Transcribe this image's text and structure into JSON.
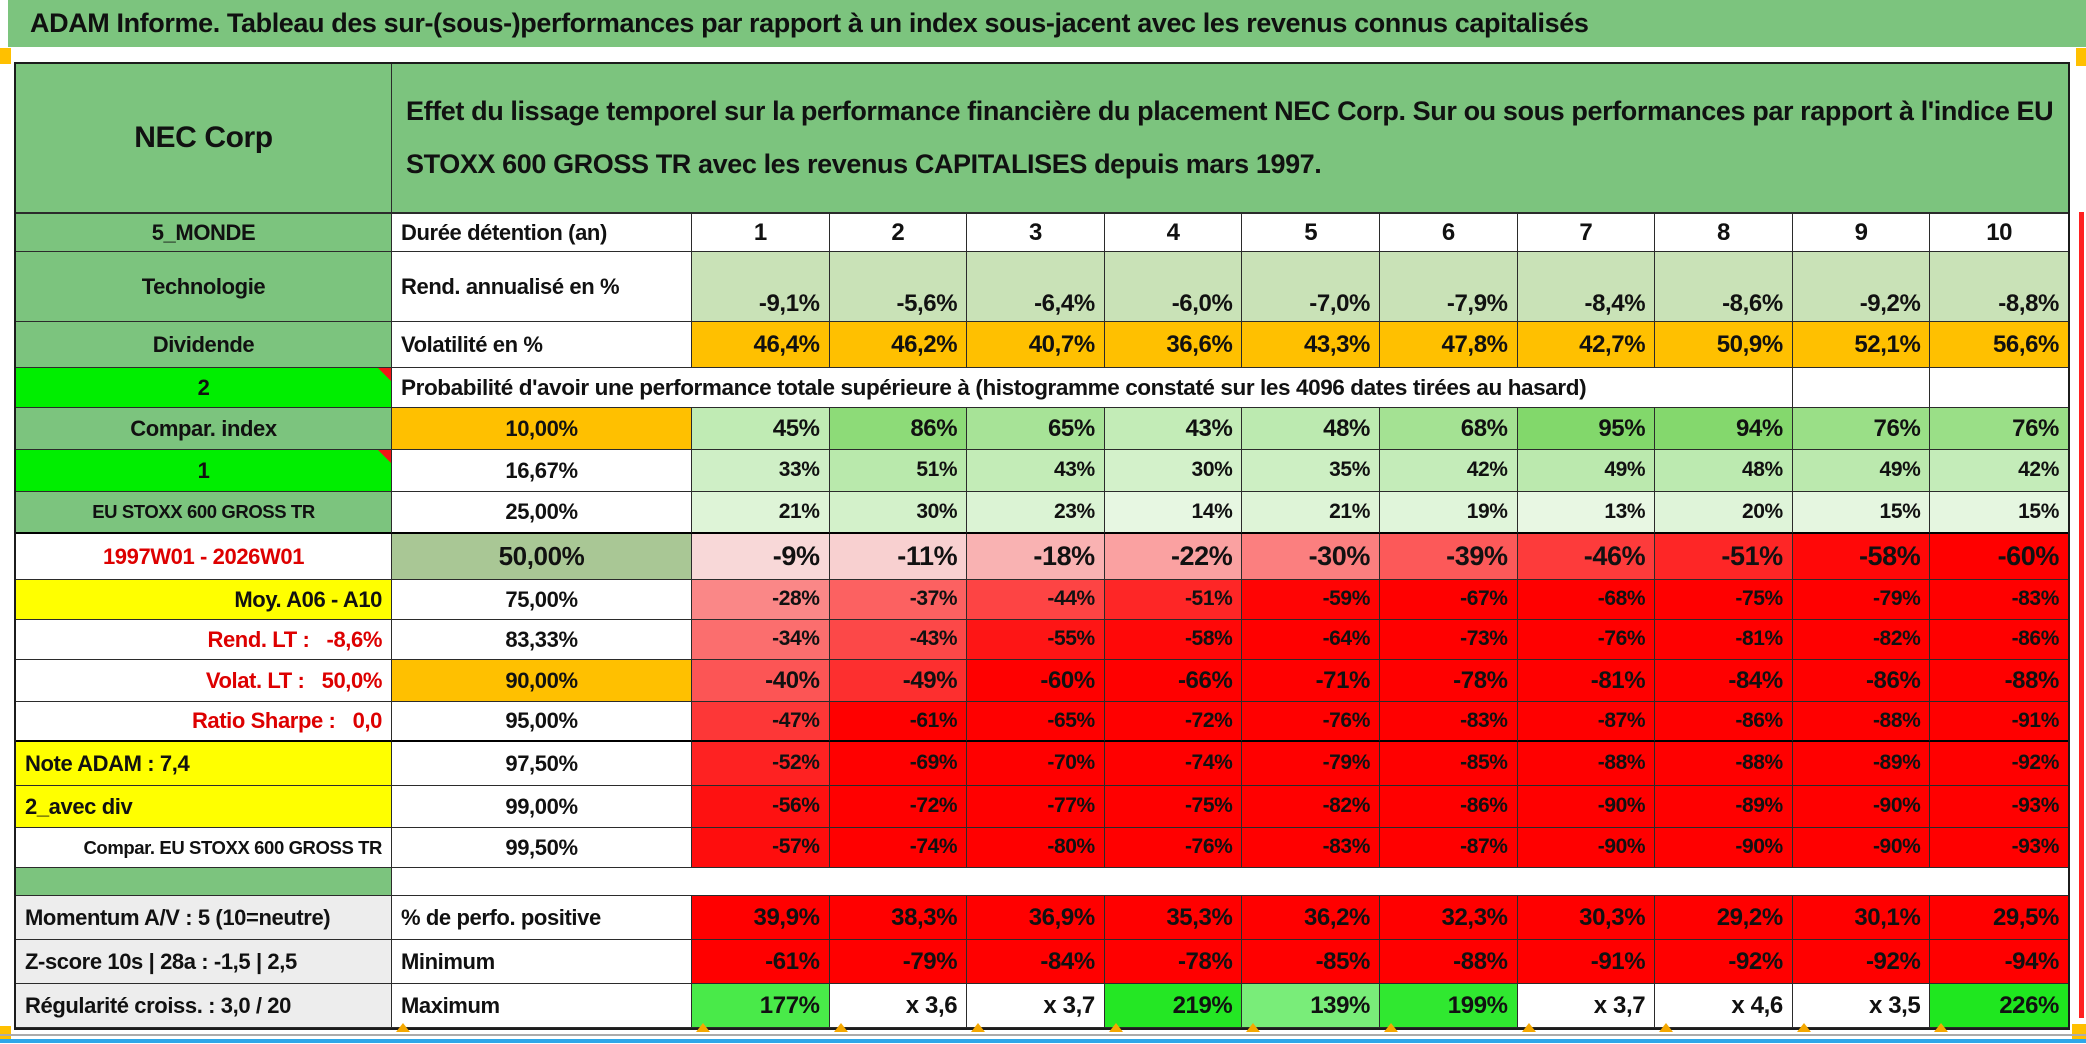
{
  "banner": {
    "title": "ADAM Informe. Tableau des sur-(sous-)performances par rapport à un index sous-jacent avec les revenus connus capitalisés"
  },
  "header": {
    "corner_label": "NEC Corp",
    "description": "Effet du lissage temporel sur la performance financière du placement NEC Corp. Sur ou sous performances par rapport à l'indice EU STOXX 600 GROSS TR avec les revenus CAPITALISES depuis mars 1997."
  },
  "colors": {
    "banner_green": "#7CC47E",
    "label_green": "#7CC47E",
    "bright_green": "#00EE00",
    "orange": "#FFC000",
    "yellow": "#FFFF00",
    "sage_green": "#A9C795",
    "gray_label": "#EDEDED",
    "red_fill": "#FF0000",
    "light_green_fill": "#C9E2B7",
    "marker_orange": "#F5A800",
    "bottom_blue_line": "#2EA7E9",
    "comment_triangle_red": "#F21616",
    "white": "#FFFFFF"
  },
  "table": {
    "rows": [
      {
        "a": {
          "t": "5_MONDE",
          "bg": "green",
          "al": "c"
        },
        "b": {
          "t": "Durée détention (an)",
          "bg": "white",
          "al": "l"
        },
        "al": "c",
        "fs": "e",
        "v": [
          "1",
          "2",
          "3",
          "4",
          "5",
          "6",
          "7",
          "8",
          "9",
          "10"
        ],
        "bgs": [
          "#FFFFFF",
          "#FFFFFF",
          "#FFFFFF",
          "#FFFFFF",
          "#FFFFFF",
          "#FFFFFF",
          "#FFFFFF",
          "#FFFFFF",
          "#FFFFFF",
          "#FFFFFF"
        ]
      },
      {
        "a": {
          "t": "Technologie",
          "bg": "green",
          "al": "c"
        },
        "b": {
          "t": "Rend. annualisé en %",
          "bg": "white",
          "al": "l"
        },
        "al": "r",
        "fs": "e",
        "bottom": true,
        "v": [
          "-9,1%",
          "-5,6%",
          "-6,4%",
          "-6,0%",
          "-7,0%",
          "-7,9%",
          "-8,4%",
          "-8,6%",
          "-9,2%",
          "-8,8%"
        ],
        "bgs": [
          "#C9E2B7",
          "#C9E2B7",
          "#C9E2B7",
          "#C9E2B7",
          "#C9E2B7",
          "#C9E2B7",
          "#C9E2B7",
          "#C9E2B7",
          "#C9E2B7",
          "#C9E2B7"
        ]
      },
      {
        "a": {
          "t": "Dividende",
          "bg": "green",
          "al": "c"
        },
        "b": {
          "t": "Volatilité en %",
          "bg": "white",
          "al": "l"
        },
        "al": "r",
        "fs": "e",
        "v": [
          "46,4%",
          "46,2%",
          "40,7%",
          "36,6%",
          "43,3%",
          "47,8%",
          "42,7%",
          "50,9%",
          "52,1%",
          "56,6%"
        ],
        "bgs": [
          "#FFC000",
          "#FFC000",
          "#FFC000",
          "#FFC000",
          "#FFC000",
          "#FFC000",
          "#FFC000",
          "#FFC000",
          "#FFC000",
          "#FFC000"
        ]
      },
      {
        "type": "span",
        "a": {
          "t": "2",
          "bg": "bright",
          "al": "c",
          "tri": true
        },
        "text": "Probabilité d'avoir une performance totale supérieure à (histogramme constaté sur les 4096 dates tirées au hasard)",
        "tail": 2
      },
      {
        "a": {
          "t": "Compar. index",
          "bg": "green",
          "al": "c"
        },
        "b": {
          "t": "10,00%",
          "bg": "orange",
          "al": "c"
        },
        "al": "r",
        "fs": "e",
        "v": [
          "45%",
          "86%",
          "65%",
          "43%",
          "48%",
          "68%",
          "95%",
          "94%",
          "76%",
          "76%"
        ],
        "bgs": [
          "#C0EBB4",
          "#8DDB78",
          "#A7E397",
          "#C3ECB7",
          "#BCEAB0",
          "#A4E293",
          "#82D86B",
          "#84D86D",
          "#9ADF87",
          "#9ADF87"
        ]
      },
      {
        "a": {
          "t": "1",
          "bg": "bright",
          "al": "c",
          "tri": true
        },
        "b": {
          "t": "16,67%",
          "bg": "white",
          "al": "c"
        },
        "al": "r",
        "fs": "n",
        "v": [
          "33%",
          "51%",
          "43%",
          "30%",
          "35%",
          "42%",
          "49%",
          "48%",
          "49%",
          "42%"
        ],
        "bgs": [
          "#CFEFC6",
          "#B9E9AC",
          "#C3ECB7",
          "#D3F1CA",
          "#CDEFC3",
          "#C4ECB9",
          "#BBE9AE",
          "#BCEAB0",
          "#BBE9AE",
          "#C4ECB9"
        ]
      },
      {
        "a": {
          "t": "EU STOXX 600 GROSS TR",
          "bg": "green",
          "al": "c",
          "small": true
        },
        "b": {
          "t": "25,00%",
          "bg": "white",
          "al": "c"
        },
        "al": "r",
        "fs": "n",
        "thick": true,
        "v": [
          "21%",
          "30%",
          "23%",
          "14%",
          "21%",
          "19%",
          "13%",
          "20%",
          "15%",
          "15%"
        ],
        "bgs": [
          "#DEF4D7",
          "#D3F1CA",
          "#DBF3D4",
          "#E7F7E2",
          "#DEF4D7",
          "#E0F5DA",
          "#E8F7E3",
          "#DFF4D9",
          "#E5F6E0",
          "#E5F6E0"
        ]
      },
      {
        "a": {
          "t": "1997W01 - 2026W01",
          "bg": "white",
          "al": "c",
          "red": true
        },
        "b": {
          "t": "50,00%",
          "bg": "sage",
          "al": "c",
          "big": true
        },
        "al": "r",
        "fs": "b",
        "v": [
          "-9%",
          "-11%",
          "-18%",
          "-22%",
          "-30%",
          "-39%",
          "-46%",
          "-51%",
          "-58%",
          "-60%"
        ],
        "bgs": [
          "#F8D8D8",
          "#F8D0D0",
          "#F9B2B2",
          "#FAA1A1",
          "#FB7F7F",
          "#FC5959",
          "#FD3B3B",
          "#FE2626",
          "#FF0808",
          "#FF0000"
        ]
      },
      {
        "a": {
          "t": "Moy. A06 - A10",
          "bg": "yellow",
          "al": "r"
        },
        "b": {
          "t": "75,00%",
          "bg": "white",
          "al": "c"
        },
        "al": "r",
        "fs": "n",
        "v": [
          "-28%",
          "-37%",
          "-44%",
          "-51%",
          "-59%",
          "-67%",
          "-68%",
          "-75%",
          "-79%",
          "-83%"
        ],
        "bgs": [
          "#FA8787",
          "#FC6161",
          "#FD4444",
          "#FE2626",
          "#FF0404",
          "#FF0000",
          "#FF0000",
          "#FF0000",
          "#FF0000",
          "#FF0000"
        ]
      },
      {
        "a": {
          "t": "Rend. LT :   -8,6%",
          "bg": "white",
          "al": "r",
          "red": true,
          "pre": true
        },
        "b": {
          "t": "83,33%",
          "bg": "white",
          "al": "c"
        },
        "al": "r",
        "fs": "n",
        "v": [
          "-34%",
          "-43%",
          "-55%",
          "-58%",
          "-64%",
          "-73%",
          "-76%",
          "-81%",
          "-82%",
          "-86%"
        ],
        "bgs": [
          "#FB6E6E",
          "#FC4848",
          "#FE1515",
          "#FF0808",
          "#FF0000",
          "#FF0000",
          "#FF0000",
          "#FF0000",
          "#FF0000",
          "#FF0000"
        ]
      },
      {
        "a": {
          "t": "Volat. LT :   50,0%",
          "bg": "white",
          "al": "r",
          "red": true,
          "pre": true
        },
        "b": {
          "t": "90,00%",
          "bg": "orange",
          "al": "c"
        },
        "al": "r",
        "fs": "e",
        "v": [
          "-40%",
          "-49%",
          "-60%",
          "-66%",
          "-71%",
          "-78%",
          "-81%",
          "-84%",
          "-86%",
          "-88%"
        ],
        "bgs": [
          "#FC5555",
          "#FD2F2F",
          "#FF0000",
          "#FF0000",
          "#FF0000",
          "#FF0000",
          "#FF0000",
          "#FF0000",
          "#FF0000",
          "#FF0000"
        ]
      },
      {
        "a": {
          "t": "Ratio Sharpe :   0,0",
          "bg": "white",
          "al": "r",
          "red": true,
          "pre": true
        },
        "b": {
          "t": "95,00%",
          "bg": "white",
          "al": "c"
        },
        "al": "r",
        "fs": "n",
        "thick": true,
        "v": [
          "-47%",
          "-61%",
          "-65%",
          "-72%",
          "-76%",
          "-83%",
          "-87%",
          "-86%",
          "-88%",
          "-91%"
        ],
        "bgs": [
          "#FD3737",
          "#FF0000",
          "#FF0000",
          "#FF0000",
          "#FF0000",
          "#FF0000",
          "#FF0000",
          "#FF0000",
          "#FF0000",
          "#FF0000"
        ]
      },
      {
        "a": {
          "t": "Note ADAM : 7,4",
          "bg": "yellow",
          "al": "l"
        },
        "b": {
          "t": "97,50%",
          "bg": "white",
          "al": "c"
        },
        "al": "r",
        "fs": "n",
        "v": [
          "-52%",
          "-69%",
          "-70%",
          "-74%",
          "-79%",
          "-85%",
          "-88%",
          "-88%",
          "-89%",
          "-92%"
        ],
        "bgs": [
          "#FE2222",
          "#FF0000",
          "#FF0000",
          "#FF0000",
          "#FF0000",
          "#FF0000",
          "#FF0000",
          "#FF0000",
          "#FF0000",
          "#FF0000"
        ]
      },
      {
        "a": {
          "t": "2_avec div",
          "bg": "yellow",
          "al": "l"
        },
        "b": {
          "t": "99,00%",
          "bg": "white",
          "al": "c"
        },
        "al": "r",
        "fs": "n",
        "v": [
          "-56%",
          "-72%",
          "-77%",
          "-75%",
          "-82%",
          "-86%",
          "-90%",
          "-89%",
          "-90%",
          "-93%"
        ],
        "bgs": [
          "#FE1111",
          "#FF0000",
          "#FF0000",
          "#FF0000",
          "#FF0000",
          "#FF0000",
          "#FF0000",
          "#FF0000",
          "#FF0000",
          "#FF0000"
        ]
      },
      {
        "a": {
          "t": "Compar. EU STOXX 600 GROSS TR",
          "bg": "white",
          "al": "r",
          "small": true
        },
        "b": {
          "t": "99,50%",
          "bg": "white",
          "al": "c"
        },
        "al": "r",
        "fs": "n",
        "v": [
          "-57%",
          "-74%",
          "-80%",
          "-76%",
          "-83%",
          "-87%",
          "-90%",
          "-90%",
          "-90%",
          "-93%"
        ],
        "bgs": [
          "#FE0D0D",
          "#FF0000",
          "#FF0000",
          "#FF0000",
          "#FF0000",
          "#FF0000",
          "#FF0000",
          "#FF0000",
          "#FF0000",
          "#FF0000"
        ]
      },
      {
        "type": "sep",
        "a": {
          "bg": "green"
        }
      },
      {
        "a": {
          "t": "Momentum A/V : 5 (10=neutre)",
          "bg": "gray",
          "al": "l"
        },
        "b": {
          "t": "% de perfo. positive",
          "bg": "white",
          "al": "l"
        },
        "al": "r",
        "fs": "e",
        "v": [
          "39,9%",
          "38,3%",
          "36,9%",
          "35,3%",
          "36,2%",
          "32,3%",
          "30,3%",
          "29,2%",
          "30,1%",
          "29,5%"
        ],
        "bgs": [
          "#FF0000",
          "#FF0000",
          "#FF0000",
          "#FF0000",
          "#FF0000",
          "#FF0000",
          "#FF0000",
          "#FF0000",
          "#FF0000",
          "#FF0000"
        ]
      },
      {
        "a": {
          "t": "Z-score 10s | 28a : -1,5 | 2,5",
          "bg": "gray",
          "al": "l"
        },
        "b": {
          "t": "Minimum",
          "bg": "white",
          "al": "l"
        },
        "al": "r",
        "fs": "e",
        "v": [
          "-61%",
          "-79%",
          "-84%",
          "-78%",
          "-85%",
          "-88%",
          "-91%",
          "-92%",
          "-92%",
          "-94%"
        ],
        "bgs": [
          "#FF0000",
          "#FF0000",
          "#FF0000",
          "#FF0000",
          "#FF0000",
          "#FF0000",
          "#FF0000",
          "#FF0000",
          "#FF0000",
          "#FF0000"
        ]
      },
      {
        "a": {
          "t": "Régularité croiss. : 3,0 / 20",
          "bg": "gray",
          "al": "l"
        },
        "b": {
          "t": "Maximum",
          "bg": "white",
          "al": "l"
        },
        "al": "r",
        "fs": "e",
        "v": [
          "177%",
          "x 3,6",
          "x 3,7",
          "219%",
          "139%",
          "199%",
          "x 3,7",
          "x 4,6",
          "x 3,5",
          "226%"
        ],
        "bgs": [
          "#49EA49",
          "#FFFFFF",
          "#FFFFFF",
          "#24E724",
          "#79ED79",
          "#30E830",
          "#FFFFFF",
          "#FFFFFF",
          "#FFFFFF",
          "#1FE71F"
        ]
      }
    ]
  }
}
